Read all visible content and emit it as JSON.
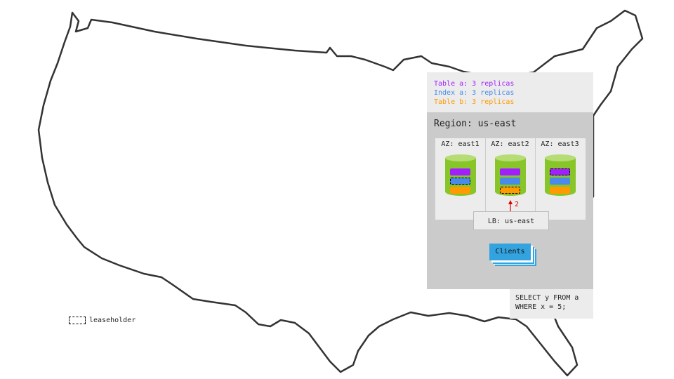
{
  "replicas": [
    {
      "text": "Table a: 3 replicas",
      "color": "#a11fff"
    },
    {
      "text": "Index a: 3 replicas",
      "color": "#4a8ae8"
    },
    {
      "text": "Table b: 3 replicas",
      "color": "#ff9a00"
    }
  ],
  "region": {
    "title": "Region: us-east"
  },
  "zones": [
    {
      "label": "AZ: east1",
      "leaseholder": "index_a"
    },
    {
      "label": "AZ: east2",
      "leaseholder": "table_b"
    },
    {
      "label": "AZ: east3",
      "leaseholder": "table_a"
    }
  ],
  "arrow": {
    "label": "2",
    "color": "#e00000"
  },
  "load_balancer": {
    "label": "LB: us-east"
  },
  "clients": {
    "label": "Clients"
  },
  "query": {
    "text": "SELECT y FROM a\nWHERE x = 5;"
  },
  "legend": {
    "label": "leaseholder"
  }
}
